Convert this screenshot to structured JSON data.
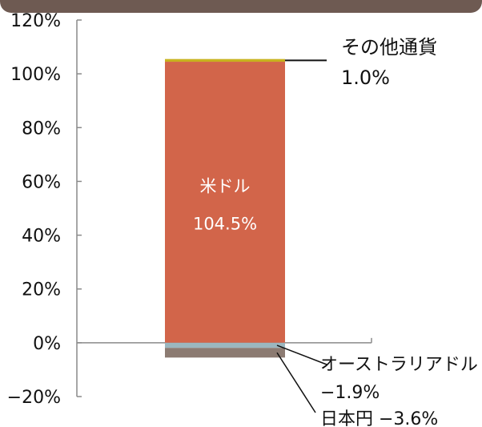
{
  "chart_data": {
    "type": "bar",
    "stacked": true,
    "ylim": [
      -20,
      120
    ],
    "yticks": [
      -20,
      0,
      20,
      40,
      60,
      80,
      100,
      120
    ],
    "ytick_labels": [
      "−20%",
      "0%",
      "20%",
      "40%",
      "60%",
      "80%",
      "100%",
      "120%"
    ],
    "grid": false,
    "series": [
      {
        "name": "米ドル",
        "value": 104.5,
        "value_label": "104.5%",
        "color": "#d2654a"
      },
      {
        "name": "その他通貨",
        "value": 1.0,
        "value_label": "1.0%",
        "color": "#c8b31e"
      },
      {
        "name": "オーストラリアドル",
        "value": -1.9,
        "value_label": "−1.9%",
        "color": "#9bb7bf"
      },
      {
        "name": "日本円",
        "value": -3.6,
        "value_label": "−3.6%",
        "color": "#8c7b72"
      }
    ]
  },
  "colors": {
    "header_band": "#6e5a52",
    "axis": "#8a8a8a",
    "text": "#111111",
    "inner_label": "#ffffff"
  }
}
